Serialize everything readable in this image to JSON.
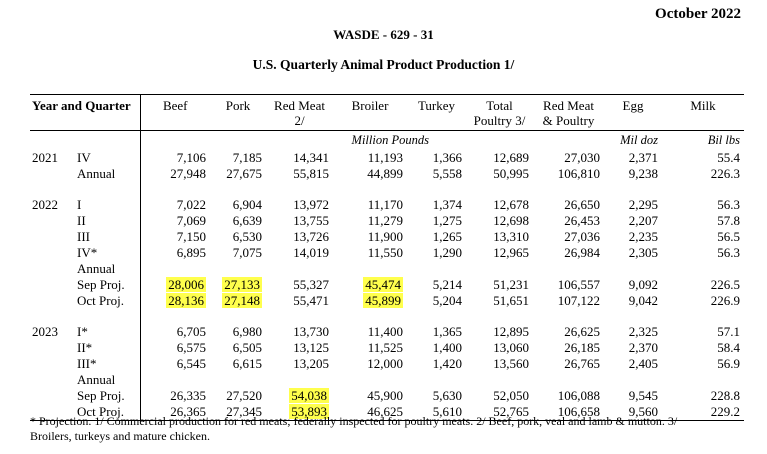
{
  "page": {
    "date": "October 2022",
    "report_id": "WASDE - 629 - 31",
    "table_title": "U.S. Quarterly Animal Product Production 1/"
  },
  "colors": {
    "highlight": "#ffff4d"
  },
  "table": {
    "stub_header": "Year and Quarter",
    "columns": [
      {
        "line1": "Beef",
        "line2": ""
      },
      {
        "line1": "Pork",
        "line2": ""
      },
      {
        "line1": "Red Meat",
        "line2": "2/"
      },
      {
        "line1": "Broiler",
        "line2": ""
      },
      {
        "line1": "Turkey",
        "line2": ""
      },
      {
        "line1": "Total",
        "line2": "Poultry 3/"
      },
      {
        "line1": "Red Meat",
        "line2": "& Poultry"
      },
      {
        "line1": "Egg",
        "line2": ""
      },
      {
        "line1": "Milk",
        "line2": ""
      }
    ],
    "units": {
      "meat": "Million Pounds",
      "egg": "Mil doz",
      "milk": "Bil lbs"
    },
    "rows": [
      {
        "year": "2021",
        "q": "IV",
        "vals": [
          "7,106",
          "7,185",
          "14,341",
          "11,193",
          "1,366",
          "12,689",
          "27,030",
          "2,371",
          "55.4"
        ]
      },
      {
        "year": "",
        "q": "Annual",
        "vals": [
          "27,948",
          "27,675",
          "55,815",
          "44,899",
          "5,558",
          "50,995",
          "106,810",
          "9,238",
          "226.3"
        ]
      },
      {
        "spacer": true
      },
      {
        "year": "2022",
        "q": "I",
        "vals": [
          "7,022",
          "6,904",
          "13,972",
          "11,170",
          "1,374",
          "12,678",
          "26,650",
          "2,295",
          "56.3"
        ]
      },
      {
        "year": "",
        "q": "II",
        "vals": [
          "7,069",
          "6,639",
          "13,755",
          "11,279",
          "1,275",
          "12,698",
          "26,453",
          "2,207",
          "57.8"
        ]
      },
      {
        "year": "",
        "q": "III",
        "vals": [
          "7,150",
          "6,530",
          "13,726",
          "11,900",
          "1,265",
          "13,310",
          "27,036",
          "2,235",
          "56.5"
        ]
      },
      {
        "year": "",
        "q": "IV*",
        "vals": [
          "6,895",
          "7,075",
          "14,019",
          "11,550",
          "1,290",
          "12,965",
          "26,984",
          "2,305",
          "56.3"
        ]
      },
      {
        "year": "",
        "q": "Annual",
        "vals": [
          "",
          "",
          "",
          "",
          "",
          "",
          "",
          "",
          ""
        ]
      },
      {
        "year": "",
        "q": "Sep Proj.",
        "vals": [
          "28,006",
          "27,133",
          "55,327",
          "45,474",
          "5,214",
          "51,231",
          "106,557",
          "9,092",
          "226.5"
        ],
        "hl": [
          0,
          1,
          3
        ]
      },
      {
        "year": "",
        "q": "Oct Proj.",
        "vals": [
          "28,136",
          "27,148",
          "55,471",
          "45,899",
          "5,204",
          "51,651",
          "107,122",
          "9,042",
          "226.9"
        ],
        "hl": [
          0,
          1,
          3
        ]
      },
      {
        "spacer": true
      },
      {
        "year": "2023",
        "q": "I*",
        "vals": [
          "6,705",
          "6,980",
          "13,730",
          "11,400",
          "1,365",
          "12,895",
          "26,625",
          "2,325",
          "57.1"
        ]
      },
      {
        "year": "",
        "q": "II*",
        "vals": [
          "6,575",
          "6,505",
          "13,125",
          "11,525",
          "1,400",
          "13,060",
          "26,185",
          "2,370",
          "58.4"
        ]
      },
      {
        "year": "",
        "q": "III*",
        "vals": [
          "6,545",
          "6,615",
          "13,205",
          "12,000",
          "1,420",
          "13,560",
          "26,765",
          "2,405",
          "56.9"
        ]
      },
      {
        "year": "",
        "q": "Annual",
        "vals": [
          "",
          "",
          "",
          "",
          "",
          "",
          "",
          "",
          ""
        ]
      },
      {
        "year": "",
        "q": "Sep Proj.",
        "vals": [
          "26,335",
          "27,520",
          "54,038",
          "45,900",
          "5,630",
          "52,050",
          "106,088",
          "9,545",
          "228.8"
        ],
        "hl": [
          2
        ]
      },
      {
        "year": "",
        "q": "Oct Proj.",
        "vals": [
          "26,365",
          "27,345",
          "53,893",
          "46,625",
          "5,610",
          "52,765",
          "106,658",
          "9,560",
          "229.2"
        ],
        "hl": [
          2
        ]
      }
    ]
  },
  "footnote": [
    "* Projection. 1/ Commercial production for red meats; federally inspected for poultry meats. 2/ Beef, pork, veal and lamb & mutton. 3/",
    "Broilers, turkeys and mature chicken."
  ]
}
